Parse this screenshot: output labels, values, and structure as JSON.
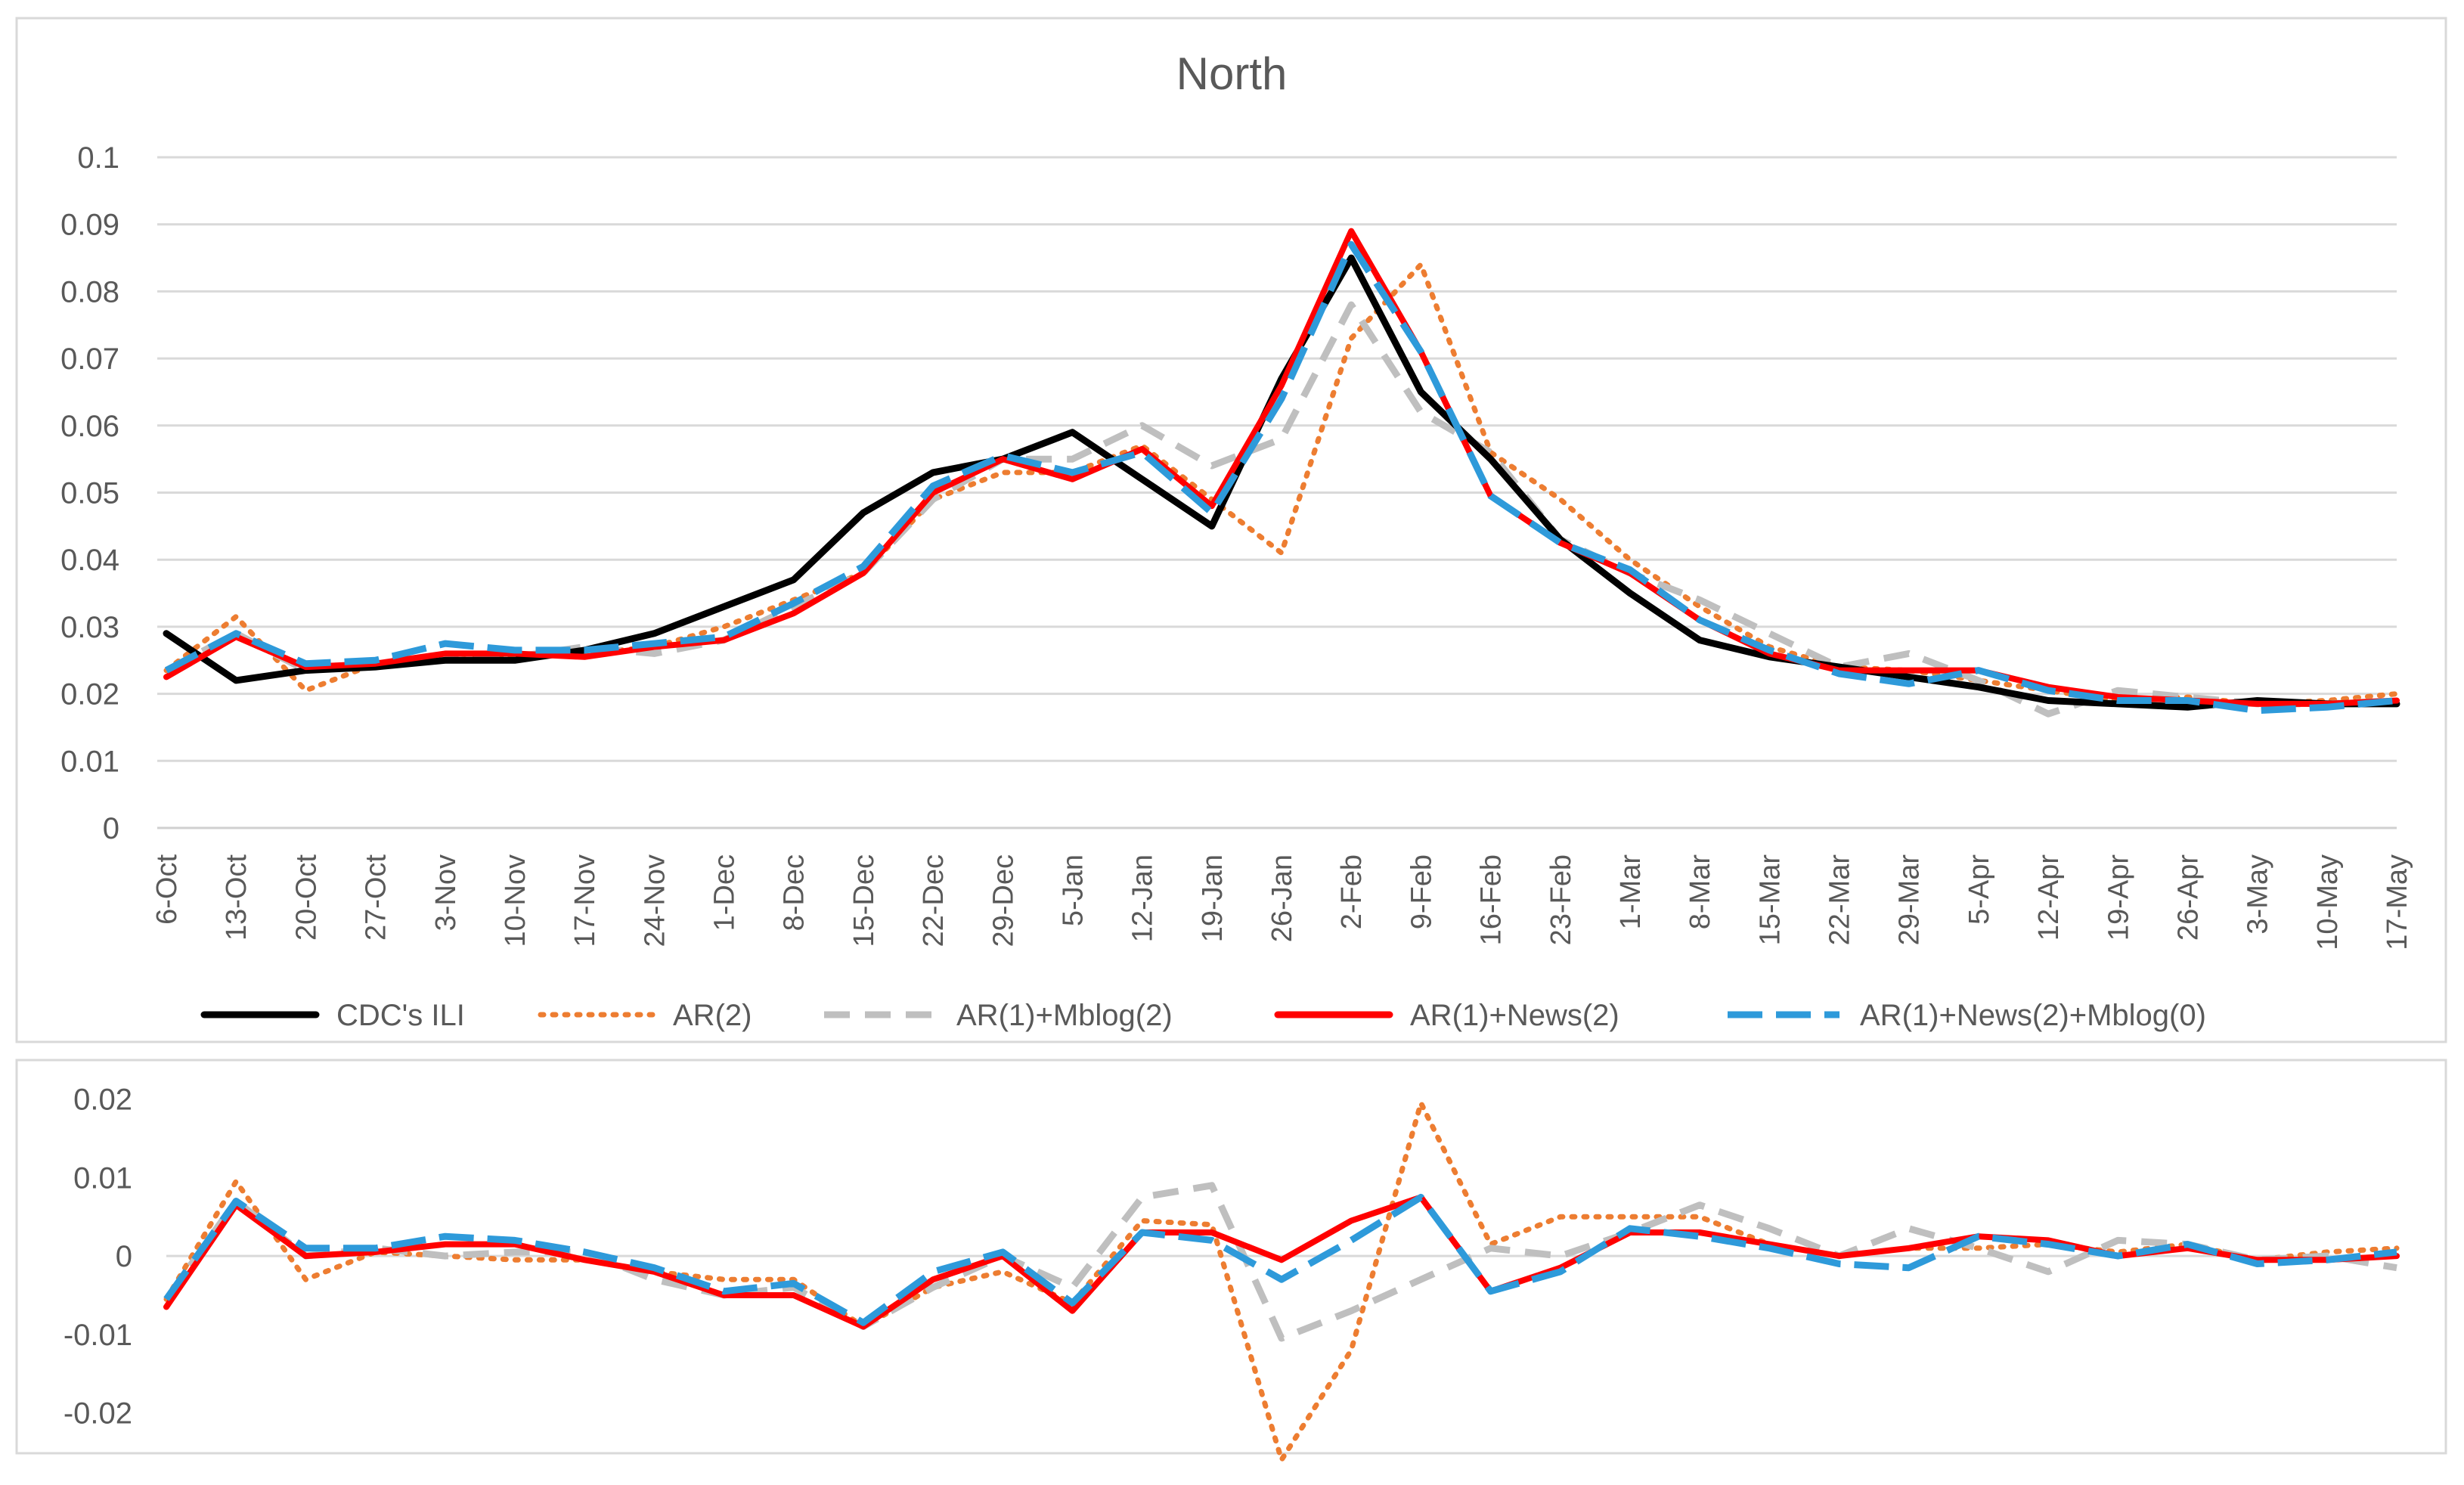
{
  "chart_data": [
    {
      "type": "line",
      "title": "North",
      "xlabel": "",
      "ylabel": "",
      "ylim": [
        0,
        0.1
      ],
      "yticks": [
        "0",
        "0.01",
        "0.02",
        "0.03",
        "0.04",
        "0.05",
        "0.06",
        "0.07",
        "0.08",
        "0.09",
        "0.1"
      ],
      "yticks_values": [
        0,
        0.01,
        0.02,
        0.03,
        0.04,
        0.05,
        0.06,
        0.07,
        0.08,
        0.09,
        0.1
      ],
      "grid": true,
      "legend_position": "bottom",
      "categories": [
        "6-Oct",
        "13-Oct",
        "20-Oct",
        "27-Oct",
        "3-Nov",
        "10-Nov",
        "17-Nov",
        "24-Nov",
        "1-Dec",
        "8-Dec",
        "15-Dec",
        "22-Dec",
        "29-Dec",
        "5-Jan",
        "12-Jan",
        "19-Jan",
        "26-Jan",
        "2-Feb",
        "9-Feb",
        "16-Feb",
        "23-Feb",
        "1-Mar",
        "8-Mar",
        "15-Mar",
        "22-Mar",
        "29-Mar",
        "5-Apr",
        "12-Apr",
        "19-Apr",
        "26-Apr",
        "3-May",
        "10-May",
        "17-May"
      ],
      "series": [
        {
          "name": "CDC's ILI",
          "color": "#000000",
          "dash": "solid",
          "values": [
            0.029,
            0.022,
            0.0235,
            0.024,
            0.025,
            0.025,
            0.0265,
            0.029,
            0.033,
            0.037,
            0.047,
            0.053,
            0.055,
            0.059,
            0.052,
            0.045,
            0.067,
            0.085,
            0.065,
            0.055,
            0.043,
            0.035,
            0.028,
            0.0255,
            0.024,
            0.0225,
            0.021,
            0.019,
            0.0185,
            0.018,
            0.019,
            0.0185,
            0.0185
          ]
        },
        {
          "name": "AR(2)",
          "color": "#ED7D31",
          "dash": "dotted",
          "values": [
            0.0235,
            0.0315,
            0.0205,
            0.0245,
            0.025,
            0.0255,
            0.026,
            0.027,
            0.03,
            0.034,
            0.038,
            0.049,
            0.053,
            0.053,
            0.057,
            0.049,
            0.041,
            0.073,
            0.084,
            0.056,
            0.049,
            0.04,
            0.033,
            0.027,
            0.024,
            0.0235,
            0.022,
            0.0205,
            0.019,
            0.0195,
            0.0185,
            0.019,
            0.02
          ]
        },
        {
          "name": "AR(1)+Mblog(2)",
          "color": "#BFBFBF",
          "dash": "dashed",
          "values": [
            0.0235,
            0.029,
            0.0235,
            0.025,
            0.025,
            0.0255,
            0.027,
            0.026,
            0.028,
            0.033,
            0.038,
            0.049,
            0.055,
            0.055,
            0.06,
            0.054,
            0.058,
            0.078,
            0.062,
            0.056,
            0.043,
            0.038,
            0.034,
            0.029,
            0.024,
            0.026,
            0.022,
            0.017,
            0.0205,
            0.0195,
            0.0185,
            0.0185,
            0.019
          ]
        },
        {
          "name": "AR(1)+News(2)",
          "color": "#FF0000",
          "dash": "solid",
          "values": [
            0.0225,
            0.0285,
            0.024,
            0.0245,
            0.026,
            0.026,
            0.0255,
            0.027,
            0.028,
            0.032,
            0.038,
            0.05,
            0.055,
            0.052,
            0.0565,
            0.048,
            0.066,
            0.089,
            0.071,
            0.0495,
            0.0425,
            0.038,
            0.031,
            0.026,
            0.0235,
            0.0235,
            0.0235,
            0.021,
            0.0195,
            0.019,
            0.0185,
            0.0185,
            0.019
          ]
        },
        {
          "name": "AR(1)+News(2)+Mblog(0)",
          "color": "#2E9ADA",
          "dash": "longdash",
          "values": [
            0.0235,
            0.029,
            0.0245,
            0.025,
            0.0275,
            0.0265,
            0.0265,
            0.0275,
            0.0285,
            0.0335,
            0.039,
            0.051,
            0.0555,
            0.053,
            0.056,
            0.047,
            0.064,
            0.087,
            0.071,
            0.0495,
            0.0425,
            0.0385,
            0.031,
            0.0265,
            0.023,
            0.0215,
            0.0235,
            0.0205,
            0.019,
            0.019,
            0.0175,
            0.018,
            0.019
          ]
        }
      ]
    },
    {
      "type": "line",
      "title": "",
      "xlabel": "",
      "ylabel": "",
      "ylim": [
        -0.024,
        0.022
      ],
      "yticks": [
        "-0.02",
        "-0.01",
        "0",
        "0.01",
        "0.02"
      ],
      "yticks_values": [
        -0.02,
        -0.01,
        0,
        0.01,
        0.02
      ],
      "grid": false,
      "series": [
        {
          "name": "AR(2)",
          "color": "#ED7D31",
          "dash": "dotted",
          "values": [
            -0.0055,
            0.0095,
            -0.003,
            0.0005,
            0.0,
            -0.0005,
            -0.0005,
            -0.002,
            -0.003,
            -0.003,
            -0.009,
            -0.004,
            -0.002,
            -0.006,
            0.0045,
            0.004,
            -0.026,
            -0.012,
            0.0195,
            0.0015,
            0.005,
            0.005,
            0.005,
            0.0015,
            0.0,
            0.001,
            0.001,
            0.0015,
            0.0005,
            0.0015,
            -0.0005,
            0.0005,
            0.001
          ]
        },
        {
          "name": "AR(1)+Mblog(2)",
          "color": "#BFBFBF",
          "dash": "dashed",
          "values": [
            -0.0055,
            0.007,
            0.0,
            0.001,
            0.0,
            0.0005,
            0.0005,
            -0.003,
            -0.005,
            -0.004,
            -0.009,
            -0.004,
            0.0,
            -0.004,
            0.0075,
            0.009,
            -0.0105,
            -0.007,
            -0.003,
            0.001,
            0.0,
            0.003,
            0.0065,
            0.0035,
            0.0,
            0.0035,
            0.001,
            -0.002,
            0.002,
            0.0015,
            -0.0005,
            0.0,
            -0.0015
          ]
        },
        {
          "name": "AR(1)+News(2)",
          "color": "#FF0000",
          "dash": "solid",
          "values": [
            -0.0065,
            0.0065,
            0.0,
            0.0005,
            0.0015,
            0.0015,
            -0.0005,
            -0.002,
            -0.005,
            -0.005,
            -0.009,
            -0.003,
            0.0,
            -0.007,
            0.003,
            0.003,
            -0.0005,
            0.0045,
            0.0075,
            -0.0045,
            -0.0015,
            0.003,
            0.003,
            0.0015,
            0.0,
            0.001,
            0.0025,
            0.002,
            0.0,
            0.001,
            -0.0005,
            -0.0005,
            0.0
          ]
        },
        {
          "name": "AR(1)+News(2)+Mblog(0)",
          "color": "#2E9ADA",
          "dash": "longdash",
          "values": [
            -0.0055,
            0.007,
            0.001,
            0.001,
            0.0025,
            0.002,
            0.0005,
            -0.0015,
            -0.0045,
            -0.0035,
            -0.0085,
            -0.002,
            0.0005,
            -0.006,
            0.003,
            0.002,
            -0.003,
            0.002,
            0.0075,
            -0.0045,
            -0.002,
            0.0035,
            0.0025,
            0.001,
            -0.001,
            -0.0015,
            0.0025,
            0.0015,
            0.0,
            0.0015,
            -0.001,
            -0.0005,
            0.0005
          ]
        }
      ]
    }
  ]
}
